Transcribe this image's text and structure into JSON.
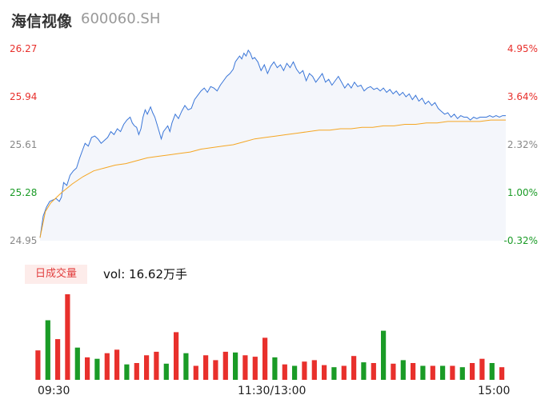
{
  "header": {
    "name": "海信视像",
    "code": "600060.SH"
  },
  "colors": {
    "up": "#e8302c",
    "down": "#1a9b26",
    "price_line": "#3a76d8",
    "avg_line": "#f5a623",
    "area": "#f4f6fb",
    "left_axis_neutral": "#888888"
  },
  "volume": {
    "badge": "日成交量",
    "label": "vol: 16.62万手"
  },
  "chart_data": [
    {
      "type": "line",
      "title": "",
      "ylim": [
        24.95,
        26.27
      ],
      "yticks": [
        {
          "price": "26.27",
          "pct": "4.95%",
          "dir": "up"
        },
        {
          "price": "25.94",
          "pct": "3.64%",
          "dir": "up"
        },
        {
          "price": "25.61",
          "pct": "2.32%",
          "dir": "flat"
        },
        {
          "price": "25.28",
          "pct": "1.00%",
          "dir": "down"
        },
        {
          "price": "24.95",
          "pct": "-0.32%",
          "dir": "down"
        }
      ],
      "xticks": [
        "09:30",
        "11:30/13:00",
        "15:00"
      ],
      "series": [
        {
          "role": "price",
          "points": [
            [
              0,
              24.97
            ],
            [
              3,
              25.12
            ],
            [
              6,
              25.18
            ],
            [
              9,
              25.22
            ],
            [
              12,
              25.23
            ],
            [
              15,
              25.24
            ],
            [
              18,
              25.22
            ],
            [
              20,
              25.25
            ],
            [
              22,
              25.35
            ],
            [
              25,
              25.33
            ],
            [
              28,
              25.4
            ],
            [
              31,
              25.43
            ],
            [
              34,
              25.45
            ],
            [
              37,
              25.52
            ],
            [
              40,
              25.58
            ],
            [
              42,
              25.62
            ],
            [
              45,
              25.6
            ],
            [
              48,
              25.66
            ],
            [
              51,
              25.67
            ],
            [
              54,
              25.65
            ],
            [
              57,
              25.62
            ],
            [
              60,
              25.64
            ],
            [
              63,
              25.66
            ],
            [
              66,
              25.7
            ],
            [
              69,
              25.68
            ],
            [
              72,
              25.72
            ],
            [
              75,
              25.7
            ],
            [
              78,
              25.75
            ],
            [
              81,
              25.78
            ],
            [
              84,
              25.8
            ],
            [
              86,
              25.76
            ],
            [
              88,
              25.74
            ],
            [
              90,
              25.73
            ],
            [
              92,
              25.68
            ],
            [
              94,
              25.72
            ],
            [
              96,
              25.8
            ],
            [
              98,
              25.85
            ],
            [
              100,
              25.82
            ],
            [
              103,
              25.87
            ],
            [
              105,
              25.83
            ],
            [
              107,
              25.8
            ],
            [
              109,
              25.75
            ],
            [
              111,
              25.7
            ],
            [
              113,
              25.65
            ],
            [
              115,
              25.7
            ],
            [
              117,
              25.72
            ],
            [
              119,
              25.74
            ],
            [
              121,
              25.7
            ],
            [
              123,
              25.76
            ],
            [
              126,
              25.82
            ],
            [
              129,
              25.79
            ],
            [
              132,
              25.84
            ],
            [
              135,
              25.88
            ],
            [
              138,
              25.85
            ],
            [
              141,
              25.86
            ],
            [
              144,
              25.92
            ],
            [
              147,
              25.95
            ],
            [
              150,
              25.98
            ],
            [
              153,
              26.0
            ],
            [
              156,
              25.97
            ],
            [
              159,
              26.01
            ],
            [
              162,
              26.0
            ],
            [
              165,
              25.98
            ],
            [
              168,
              26.02
            ],
            [
              171,
              26.05
            ],
            [
              174,
              26.08
            ],
            [
              177,
              26.1
            ],
            [
              180,
              26.13
            ],
            [
              182,
              26.18
            ],
            [
              184,
              26.2
            ],
            [
              186,
              26.22
            ],
            [
              188,
              26.2
            ],
            [
              190,
              26.24
            ],
            [
              192,
              26.22
            ],
            [
              194,
              26.26
            ],
            [
              196,
              26.24
            ],
            [
              198,
              26.2
            ],
            [
              200,
              26.21
            ],
            [
              203,
              26.18
            ],
            [
              206,
              26.12
            ],
            [
              209,
              26.16
            ],
            [
              212,
              26.1
            ],
            [
              215,
              26.15
            ],
            [
              218,
              26.18
            ],
            [
              221,
              26.14
            ],
            [
              224,
              26.16
            ],
            [
              227,
              26.12
            ],
            [
              230,
              26.17
            ],
            [
              233,
              26.14
            ],
            [
              236,
              26.18
            ],
            [
              239,
              26.13
            ],
            [
              242,
              26.1
            ],
            [
              245,
              26.12
            ],
            [
              248,
              26.05
            ],
            [
              251,
              26.1
            ],
            [
              254,
              26.08
            ],
            [
              257,
              26.04
            ],
            [
              260,
              26.07
            ],
            [
              263,
              26.1
            ],
            [
              266,
              26.04
            ],
            [
              269,
              26.06
            ],
            [
              272,
              26.02
            ],
            [
              275,
              26.05
            ],
            [
              278,
              26.08
            ],
            [
              281,
              26.04
            ],
            [
              284,
              26.0
            ],
            [
              287,
              26.03
            ],
            [
              290,
              26.0
            ],
            [
              293,
              26.04
            ],
            [
              296,
              26.01
            ],
            [
              299,
              26.02
            ],
            [
              302,
              25.98
            ],
            [
              305,
              26.0
            ],
            [
              308,
              26.01
            ],
            [
              311,
              25.99
            ],
            [
              314,
              26.0
            ],
            [
              317,
              25.98
            ],
            [
              320,
              26.0
            ],
            [
              323,
              25.97
            ],
            [
              326,
              25.99
            ],
            [
              329,
              25.96
            ],
            [
              332,
              25.98
            ],
            [
              335,
              25.95
            ],
            [
              338,
              25.97
            ],
            [
              341,
              25.94
            ],
            [
              344,
              25.96
            ],
            [
              347,
              25.92
            ],
            [
              350,
              25.95
            ],
            [
              353,
              25.91
            ],
            [
              356,
              25.93
            ],
            [
              359,
              25.89
            ],
            [
              362,
              25.91
            ],
            [
              365,
              25.88
            ],
            [
              368,
              25.9
            ],
            [
              371,
              25.86
            ],
            [
              374,
              25.84
            ],
            [
              377,
              25.82
            ],
            [
              380,
              25.83
            ],
            [
              383,
              25.8
            ],
            [
              386,
              25.82
            ],
            [
              389,
              25.79
            ],
            [
              392,
              25.81
            ],
            [
              395,
              25.8
            ],
            [
              398,
              25.8
            ],
            [
              401,
              25.78
            ],
            [
              404,
              25.8
            ],
            [
              407,
              25.79
            ],
            [
              410,
              25.8
            ],
            [
              413,
              25.8
            ],
            [
              416,
              25.8
            ],
            [
              419,
              25.81
            ],
            [
              422,
              25.8
            ],
            [
              425,
              25.81
            ],
            [
              428,
              25.8
            ],
            [
              431,
              25.81
            ],
            [
              434,
              25.81
            ]
          ]
        },
        {
          "role": "average",
          "points": [
            [
              0,
              24.97
            ],
            [
              5,
              25.15
            ],
            [
              10,
              25.21
            ],
            [
              20,
              25.28
            ],
            [
              30,
              25.34
            ],
            [
              40,
              25.39
            ],
            [
              50,
              25.43
            ],
            [
              60,
              25.45
            ],
            [
              70,
              25.47
            ],
            [
              80,
              25.48
            ],
            [
              90,
              25.5
            ],
            [
              100,
              25.52
            ],
            [
              110,
              25.53
            ],
            [
              120,
              25.54
            ],
            [
              130,
              25.55
            ],
            [
              140,
              25.56
            ],
            [
              150,
              25.58
            ],
            [
              160,
              25.59
            ],
            [
              170,
              25.6
            ],
            [
              180,
              25.61
            ],
            [
              190,
              25.63
            ],
            [
              200,
              25.65
            ],
            [
              210,
              25.66
            ],
            [
              220,
              25.67
            ],
            [
              230,
              25.68
            ],
            [
              240,
              25.69
            ],
            [
              250,
              25.7
            ],
            [
              260,
              25.71
            ],
            [
              270,
              25.71
            ],
            [
              280,
              25.72
            ],
            [
              290,
              25.72
            ],
            [
              300,
              25.73
            ],
            [
              310,
              25.73
            ],
            [
              320,
              25.74
            ],
            [
              330,
              25.74
            ],
            [
              340,
              25.75
            ],
            [
              350,
              25.75
            ],
            [
              360,
              25.76
            ],
            [
              370,
              25.76
            ],
            [
              380,
              25.77
            ],
            [
              390,
              25.77
            ],
            [
              400,
              25.77
            ],
            [
              410,
              25.77
            ],
            [
              420,
              25.78
            ],
            [
              434,
              25.78
            ]
          ]
        }
      ]
    },
    {
      "type": "bar",
      "title": "日成交量",
      "unit": "万手",
      "bars": [
        [
          42,
          "u"
        ],
        [
          85,
          "d"
        ],
        [
          58,
          "u"
        ],
        [
          122,
          "u"
        ],
        [
          46,
          "d"
        ],
        [
          32,
          "u"
        ],
        [
          30,
          "d"
        ],
        [
          38,
          "u"
        ],
        [
          43,
          "u"
        ],
        [
          22,
          "d"
        ],
        [
          24,
          "u"
        ],
        [
          35,
          "u"
        ],
        [
          40,
          "u"
        ],
        [
          23,
          "d"
        ],
        [
          68,
          "u"
        ],
        [
          38,
          "d"
        ],
        [
          20,
          "u"
        ],
        [
          35,
          "u"
        ],
        [
          28,
          "u"
        ],
        [
          40,
          "u"
        ],
        [
          39,
          "d"
        ],
        [
          35,
          "u"
        ],
        [
          33,
          "u"
        ],
        [
          60,
          "u"
        ],
        [
          32,
          "d"
        ],
        [
          22,
          "u"
        ],
        [
          20,
          "d"
        ],
        [
          26,
          "u"
        ],
        [
          28,
          "u"
        ],
        [
          21,
          "u"
        ],
        [
          18,
          "d"
        ],
        [
          20,
          "u"
        ],
        [
          34,
          "u"
        ],
        [
          25,
          "d"
        ],
        [
          24,
          "u"
        ],
        [
          70,
          "d"
        ],
        [
          23,
          "u"
        ],
        [
          28,
          "d"
        ],
        [
          24,
          "u"
        ],
        [
          20,
          "d"
        ],
        [
          20,
          "u"
        ],
        [
          20,
          "d"
        ],
        [
          20,
          "u"
        ],
        [
          18,
          "d"
        ],
        [
          24,
          "u"
        ],
        [
          30,
          "u"
        ],
        [
          24,
          "d"
        ],
        [
          18,
          "u"
        ]
      ]
    }
  ]
}
